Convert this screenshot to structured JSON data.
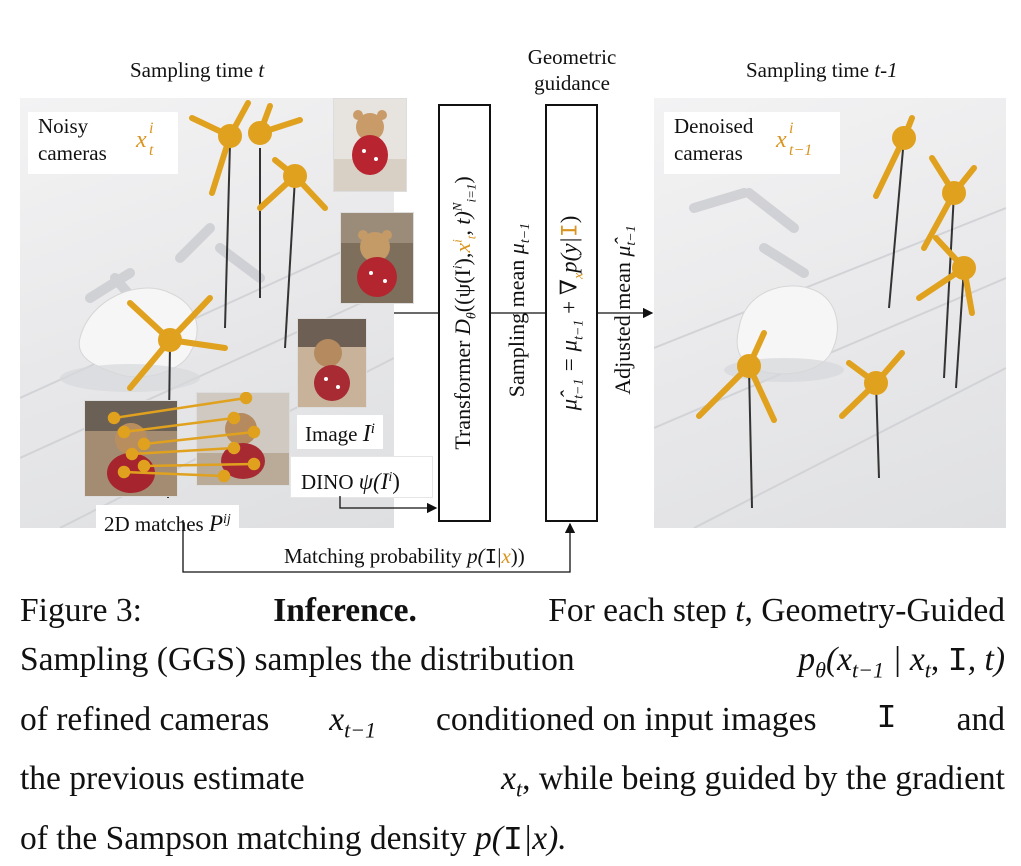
{
  "header": {
    "left_prefix": "Sampling time ",
    "left_var": "t",
    "center_line1": "Geometric",
    "center_line2": "guidance",
    "right_prefix": "Sampling time ",
    "right_var": "t-1"
  },
  "left_panel": {
    "noisy_label_line1": "Noisy",
    "noisy_label_line2": "cameras",
    "noisy_symbol": "x",
    "noisy_symbol_sup": "i",
    "noisy_symbol_sub": "t",
    "image_label": "Image",
    "image_symbol": "I",
    "image_symbol_sup": "i",
    "dino_label": "DINO",
    "dino_symbol": "ψ(I",
    "dino_symbol_sup": "i",
    "dino_symbol_end": ")",
    "matches_label": "2D matches",
    "matches_symbol": "P",
    "matches_symbol_sup": "ij"
  },
  "boxes": {
    "transformer": "Transformer",
    "transformer_math_a": "D",
    "transformer_math_b": "θ",
    "transformer_math_c": "((ψ(I",
    "transformer_math_d": "i",
    "transformer_math_e": "),",
    "transformer_math_f": "x",
    "transformer_math_g": "i",
    "transformer_math_h": "t",
    "transformer_math_i": ", t)",
    "transformer_math_j": "N",
    "transformer_math_k": "i=1",
    "transformer_math_l": ")",
    "sampling_mean_label": "Sampling mean",
    "sampling_mean_symbol": "μ",
    "sampling_mean_sub": "t−1",
    "guidance_a": "μ̂",
    "guidance_a_sub": "t−1",
    "guidance_b": " = μ",
    "guidance_b_sub": "t−1",
    "guidance_c": " + ∇",
    "guidance_c_sub": "x",
    "guidance_d": "p(y|",
    "guidance_e": "I",
    "guidance_f": ")",
    "adjusted_label": "Adjusted mean",
    "adjusted_symbol": "μ̂",
    "adjusted_sub": "t−1"
  },
  "matching": {
    "label": "Matching probability ",
    "symbol_a": "p(",
    "symbol_b": "I",
    "symbol_c": "|",
    "symbol_d": "x",
    "symbol_e": "))"
  },
  "right_panel": {
    "denoised_line1": "Denoised",
    "denoised_line2": "cameras",
    "denoised_symbol": "x",
    "denoised_sup": "i",
    "denoised_sub": "t−1"
  },
  "caption": {
    "l1_a": "Figure 3:",
    "l1_b": "Inference.",
    "l1_c": "For each step",
    "l1_d": "t",
    "l1_e": ", Geometry-Guided",
    "l2_a": "Sampling (GGS) samples the distribution",
    "l2_b": "p",
    "l2_c": "θ",
    "l2_d": "(x",
    "l2_e": "t−1",
    "l2_f": " | x",
    "l2_g": "t",
    "l2_h": ", ",
    "l2_i": "I",
    "l2_j": ", t)",
    "l3_a": "of refined cameras",
    "l3_b": "x",
    "l3_c": "t−1",
    "l3_d": "conditioned on input images",
    "l3_e": "I",
    "l3_f": "and",
    "l4_a": "the previous estimate",
    "l4_b": "x",
    "l4_c": "t",
    "l4_d": ", while being guided by the gradient",
    "l5_a": "of the Sampson matching density",
    "l5_b": "p(",
    "l5_c": "I",
    "l5_d": "|x).",
    "l5_e": ""
  },
  "colors": {
    "camera": "#e0a11e",
    "scene_bg": "#e9e9ea",
    "orange_text": "#d99420"
  }
}
